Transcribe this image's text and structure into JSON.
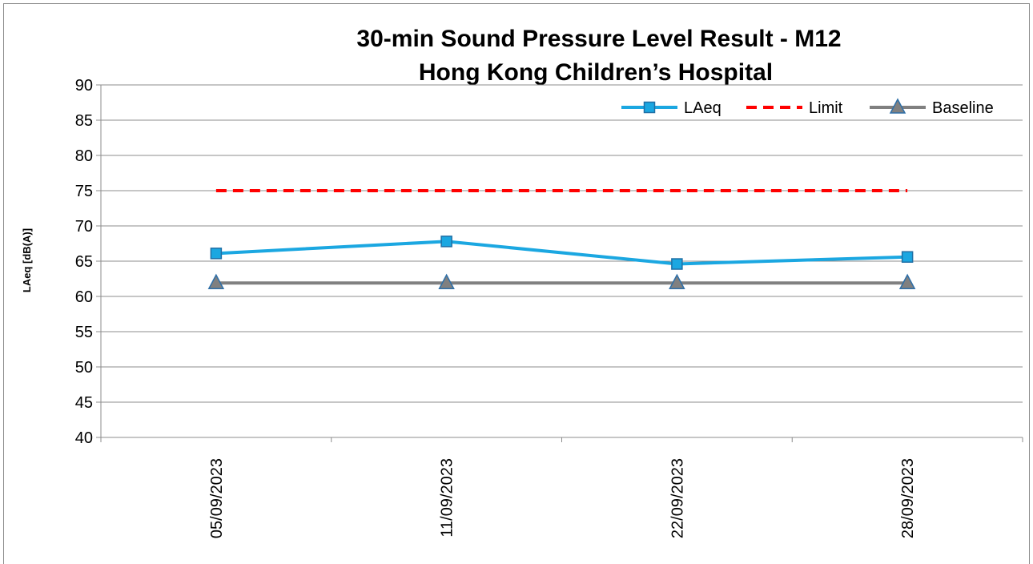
{
  "chart_data": {
    "type": "line",
    "title": "30-min Sound Pressure Level Result - M12",
    "subtitle": "Hong Kong Children’s Hospital",
    "xlabel": "",
    "ylabel": "LAeq [dB(A)]",
    "ylim": [
      40,
      90
    ],
    "yticks": [
      40,
      45,
      50,
      55,
      60,
      65,
      70,
      75,
      80,
      85,
      90
    ],
    "categories": [
      "05/09/2023",
      "11/09/2023",
      "22/09/2023",
      "28/09/2023"
    ],
    "grid": true,
    "legend_position": "top-right",
    "series": [
      {
        "name": "LAeq",
        "values": [
          66.1,
          67.8,
          64.6,
          65.6
        ],
        "color": "#1ba7e1",
        "style": "solid",
        "marker": "square"
      },
      {
        "name": "Limit",
        "values": [
          75,
          75,
          75,
          75
        ],
        "color": "#ff0000",
        "style": "dashed",
        "marker": "none"
      },
      {
        "name": "Baseline",
        "values": [
          61.9,
          61.9,
          61.9,
          61.9
        ],
        "color": "#808080",
        "style": "solid",
        "marker": "triangle"
      }
    ]
  }
}
